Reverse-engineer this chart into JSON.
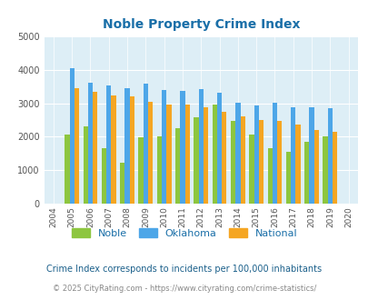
{
  "title": "Noble Property Crime Index",
  "valid_years": [
    2005,
    2006,
    2007,
    2008,
    2009,
    2010,
    2011,
    2012,
    2013,
    2014,
    2015,
    2016,
    2017,
    2018,
    2019
  ],
  "noble": [
    2080,
    2300,
    1650,
    1220,
    1980,
    2020,
    2260,
    2580,
    2950,
    2460,
    2060,
    1650,
    1560,
    1860,
    2010
  ],
  "oklahoma": [
    4040,
    3600,
    3540,
    3450,
    3570,
    3400,
    3360,
    3430,
    3310,
    3020,
    2930,
    3020,
    2880,
    2880,
    2840
  ],
  "national": [
    3440,
    3340,
    3240,
    3210,
    3050,
    2950,
    2960,
    2890,
    2730,
    2620,
    2500,
    2460,
    2360,
    2200,
    2140
  ],
  "all_display_years": [
    2004,
    2005,
    2006,
    2007,
    2008,
    2009,
    2010,
    2011,
    2012,
    2013,
    2014,
    2015,
    2016,
    2017,
    2018,
    2019,
    2020
  ],
  "noble_color": "#8dc63f",
  "oklahoma_color": "#4da6e8",
  "national_color": "#f5a623",
  "bg_color": "#ddeef6",
  "ylim": [
    0,
    5000
  ],
  "yticks": [
    0,
    1000,
    2000,
    3000,
    4000,
    5000
  ],
  "footnote1": "Crime Index corresponds to incidents per 100,000 inhabitants",
  "footnote2": "© 2025 CityRating.com - https://www.cityrating.com/crime-statistics/",
  "title_color": "#1a6fa8",
  "footnote1_color": "#1a5f8a",
  "footnote2_color": "#888888",
  "legend_labels": [
    "Noble",
    "Oklahoma",
    "National"
  ]
}
